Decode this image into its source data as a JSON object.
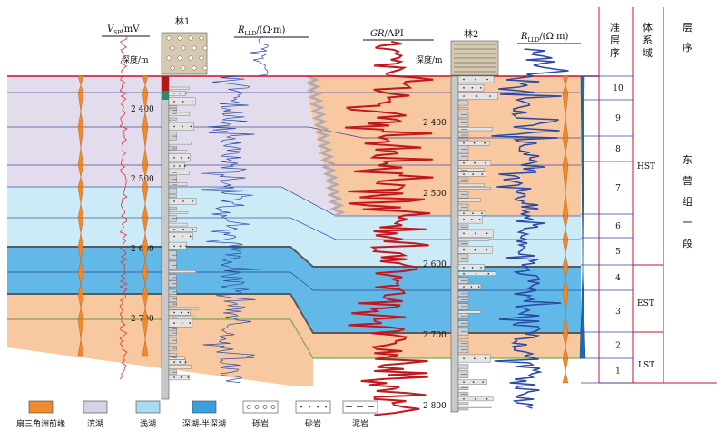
{
  "wells": {
    "well1_name": "林1",
    "well2_name": "林2"
  },
  "curves": {
    "vsp_label": "V",
    "vsp_sub": "SP",
    "vsp_unit": "/mV",
    "rllD_label": "R",
    "rllD_sub": "LLD",
    "rllD_unit": "/(Ω·m)",
    "gr_label": "GR",
    "gr_unit": "/API",
    "depth_label": "深度/m"
  },
  "depth_ticks": {
    "well1": [
      "2 400",
      "2 500",
      "2 600",
      "2 700"
    ],
    "well2": [
      "2 400",
      "2 500",
      "2 600",
      "2 700",
      "2 800"
    ]
  },
  "columns": {
    "cycle_header": [
      "准",
      "层",
      "序"
    ],
    "tract_header": [
      "体",
      "系",
      "域"
    ],
    "sequence_header": [
      "层",
      "序"
    ]
  },
  "cycles": [
    "10",
    "9",
    "8",
    "7",
    "6",
    "5",
    "4",
    "3",
    "2",
    "1"
  ],
  "tracts": [
    "HST",
    "EST",
    "LST"
  ],
  "sequence_name": [
    "东",
    "营",
    "组",
    "一",
    "段"
  ],
  "legend": [
    {
      "label": "扇三角洲前缘",
      "color": "#f08a2e"
    },
    {
      "label": "滨湖",
      "color": "#d8d0e6"
    },
    {
      "label": "浅湖",
      "color": "#a8dcf2"
    },
    {
      "label": "深湖-半深湖",
      "color": "#3aa0dc"
    },
    {
      "label": "砾岩",
      "pattern": "gravel"
    },
    {
      "label": "砂岩",
      "pattern": "sand"
    },
    {
      "label": "泥岩",
      "pattern": "mud"
    }
  ],
  "colors": {
    "fan_delta": "#f8c9a0",
    "shore_lake": "#e2dcec",
    "shallow_lake": "#cdeaf7",
    "deep_lake": "#62b8e6",
    "gr_curve": "#c0181e",
    "res_curve": "#2a49a6",
    "sp_curve": "#d8343a",
    "boundary": "#c8102e"
  }
}
